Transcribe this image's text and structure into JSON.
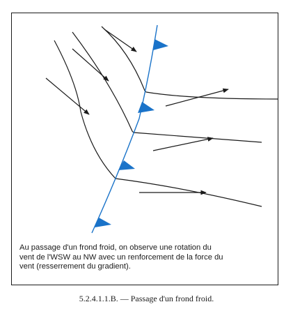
{
  "colors": {
    "front": "#1a73c9",
    "isobar": "#1a1a1a",
    "wind_arrow": "#1a1a1a",
    "frame": "#1a1a1a"
  },
  "diagram": {
    "caption_lines": [
      "Au passage d'un frond froid, on observe une rotation du",
      "vent de l'WSW au NW avec un renforcement de la force du",
      "vent (resserrement du gradient)."
    ]
  },
  "figure": {
    "title": "5.2.4.1.1.B. — Passage d'un frond froid."
  }
}
